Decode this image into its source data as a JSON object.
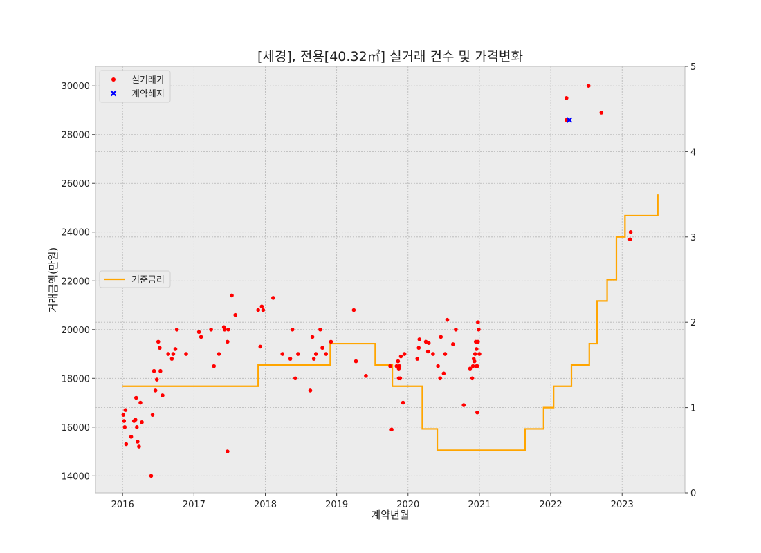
{
  "chart_data": {
    "type": "scatter",
    "title": "[세경], 전용[40.32㎡] 실거래 건수 및 가격변화",
    "xlabel": "계약년월",
    "ylabel": "거래금액(만원)",
    "xlim": [
      2015.62,
      2023.88
    ],
    "ylim": [
      13300,
      30800
    ],
    "y2lim": [
      0,
      5
    ],
    "x_ticks": [
      "2016",
      "2017",
      "2018",
      "2019",
      "2020",
      "2021",
      "2022",
      "2023"
    ],
    "y_ticks": [
      "14000",
      "16000",
      "18000",
      "20000",
      "22000",
      "24000",
      "26000",
      "28000",
      "30000"
    ],
    "y2_ticks": [
      "0",
      "1",
      "2",
      "3",
      "4",
      "5"
    ],
    "grid": true,
    "series": [
      {
        "name": "실거래가",
        "kind": "scatter",
        "marker": "dot",
        "color": "#ff0000",
        "x": [
          2016.01,
          2016.02,
          2016.03,
          2016.04,
          2016.05,
          2016.12,
          2016.16,
          2016.18,
          2016.19,
          2016.2,
          2016.21,
          2016.23,
          2016.25,
          2016.27,
          2016.4,
          2016.42,
          2016.44,
          2016.46,
          2016.48,
          2016.5,
          2016.52,
          2016.53,
          2016.56,
          2016.64,
          2016.69,
          2016.71,
          2016.74,
          2016.76,
          2016.89,
          2017.07,
          2017.1,
          2017.24,
          2017.28,
          2017.35,
          2017.42,
          2017.43,
          2017.47,
          2017.47,
          2017.48,
          2017.53,
          2017.58,
          2017.9,
          2017.93,
          2017.95,
          2017.97,
          2018.11,
          2018.24,
          2018.35,
          2018.38,
          2018.42,
          2018.46,
          2018.63,
          2018.66,
          2018.68,
          2018.71,
          2018.77,
          2018.8,
          2018.85,
          2018.92,
          2019.24,
          2019.27,
          2019.41,
          2019.75,
          2019.77,
          2019.84,
          2019.86,
          2019.87,
          2019.87,
          2019.88,
          2019.89,
          2019.9,
          2019.93,
          2019.95,
          2020.13,
          2020.15,
          2020.16,
          2020.25,
          2020.28,
          2020.29,
          2020.35,
          2020.42,
          2020.45,
          2020.46,
          2020.5,
          2020.52,
          2020.55,
          2020.63,
          2020.67,
          2020.78,
          2020.87,
          2020.9,
          2020.91,
          2020.92,
          2020.93,
          2020.94,
          2020.95,
          2020.96,
          2020.96,
          2020.97,
          2020.97,
          2020.98,
          2020.98,
          2020.99,
          2021.0,
          2022.22,
          2022.22,
          2022.53,
          2022.71,
          2023.11,
          2023.12
        ],
        "y": [
          16500,
          16250,
          16000,
          16700,
          15300,
          15600,
          16250,
          16300,
          17200,
          16000,
          15400,
          15200,
          17000,
          16200,
          14000,
          16500,
          18300,
          17500,
          17950,
          19500,
          19250,
          18300,
          17300,
          19000,
          18800,
          19000,
          19200,
          20000,
          19000,
          19900,
          19700,
          20000,
          18500,
          19000,
          20100,
          20000,
          15000,
          19500,
          20000,
          21400,
          20600,
          20800,
          19300,
          20950,
          20800,
          21300,
          19000,
          18800,
          20000,
          18000,
          19000,
          17500,
          19700,
          18800,
          19000,
          20000,
          19250,
          19000,
          19500,
          20800,
          18700,
          18100,
          18500,
          15900,
          18500,
          18700,
          18400,
          18000,
          18500,
          18000,
          18900,
          17000,
          19000,
          18800,
          19250,
          19600,
          19500,
          19100,
          19450,
          19000,
          18500,
          18000,
          19700,
          18200,
          19000,
          20400,
          19400,
          20000,
          16900,
          18400,
          18000,
          18500,
          18800,
          18700,
          19000,
          19500,
          19200,
          18500,
          16600,
          18500,
          20300,
          19500,
          20000,
          19000,
          29500,
          28600,
          30000,
          28900,
          23700,
          24000
        ]
      },
      {
        "name": "계약해지",
        "kind": "scatter",
        "marker": "x",
        "color": "#0000ff",
        "x": [
          2022.26
        ],
        "y": [
          28600
        ]
      },
      {
        "name": "기준금리",
        "kind": "step",
        "color": "#ffa500",
        "axis": "right",
        "x": [
          2016.0,
          2017.9,
          2018.91,
          2019.54,
          2019.78,
          2020.2,
          2020.41,
          2021.64,
          2021.9,
          2022.04,
          2022.29,
          2022.54,
          2022.65,
          2022.79,
          2022.92,
          2023.04,
          2023.5
        ],
        "y": [
          1.25,
          1.5,
          1.75,
          1.5,
          1.25,
          0.75,
          0.5,
          0.75,
          1.0,
          1.25,
          1.5,
          1.75,
          2.25,
          2.5,
          3.0,
          3.25,
          3.5
        ]
      }
    ],
    "legend": [
      {
        "position": "top-left",
        "entries": [
          "실거래가",
          "계약해지"
        ]
      },
      {
        "position": "center-left",
        "entries": [
          "기준금리"
        ]
      }
    ]
  }
}
